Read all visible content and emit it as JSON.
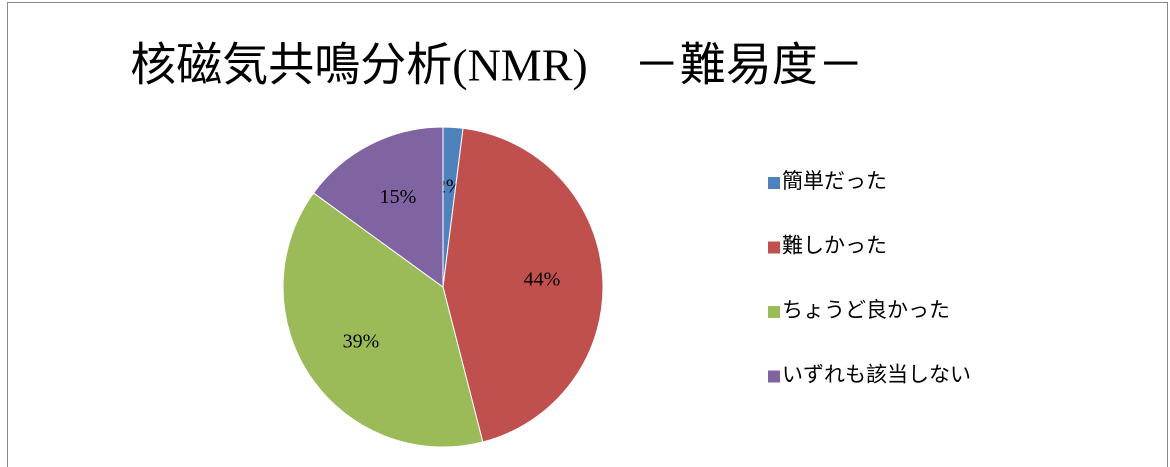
{
  "chart_data": {
    "type": "pie",
    "title": "核磁気共鳴分析(NMR)　－難易度－",
    "categories": [
      "簡単だった",
      "難しかった",
      "ちょうど良かった",
      "いずれも該当しない"
    ],
    "values": [
      2,
      44,
      39,
      15
    ],
    "value_labels": [
      "2%",
      "44%",
      "39%",
      "15%"
    ],
    "colors": [
      "#4f81bd",
      "#c0504d",
      "#9bbb59",
      "#8064a2"
    ],
    "legend": "right"
  }
}
